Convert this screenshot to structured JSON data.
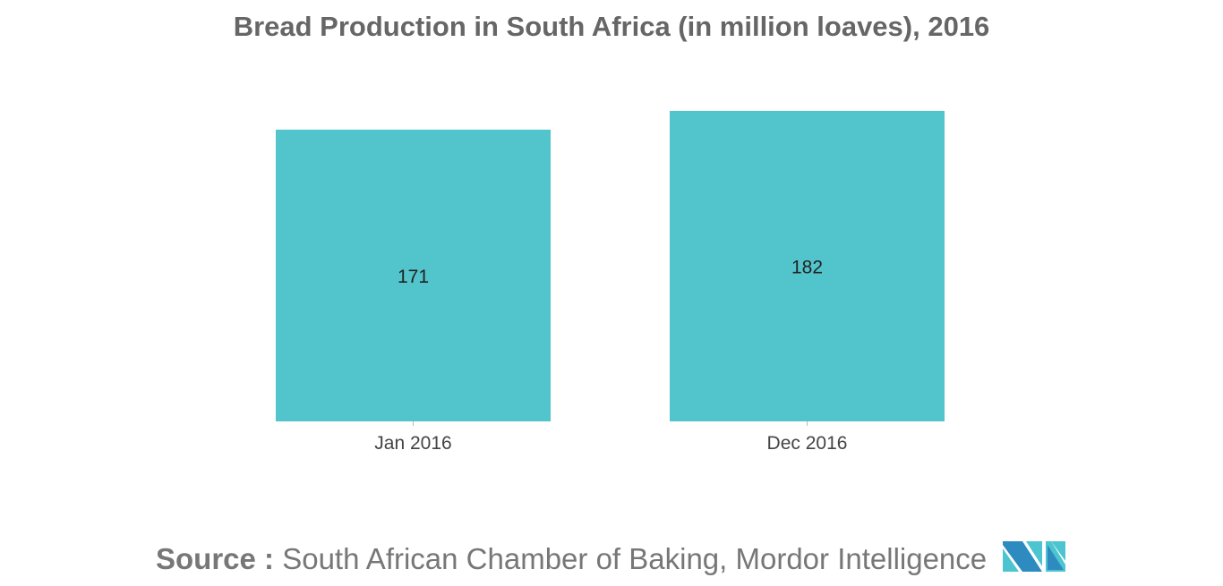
{
  "chart_data": {
    "type": "bar",
    "title": "Bread Production in South Africa (in million loaves), 2016",
    "categories": [
      "Jan 2016",
      "Dec 2016"
    ],
    "values": [
      171,
      182
    ],
    "xlabel": "",
    "ylabel": "",
    "ylim": [
      0,
      190
    ],
    "grid": false,
    "bar_color": "#52C4CB"
  },
  "footer": {
    "source_label": "Source :",
    "source_text": "South African Chamber of Baking, Mordor Intelligence",
    "logo_text": "Mordor Intelligence"
  }
}
